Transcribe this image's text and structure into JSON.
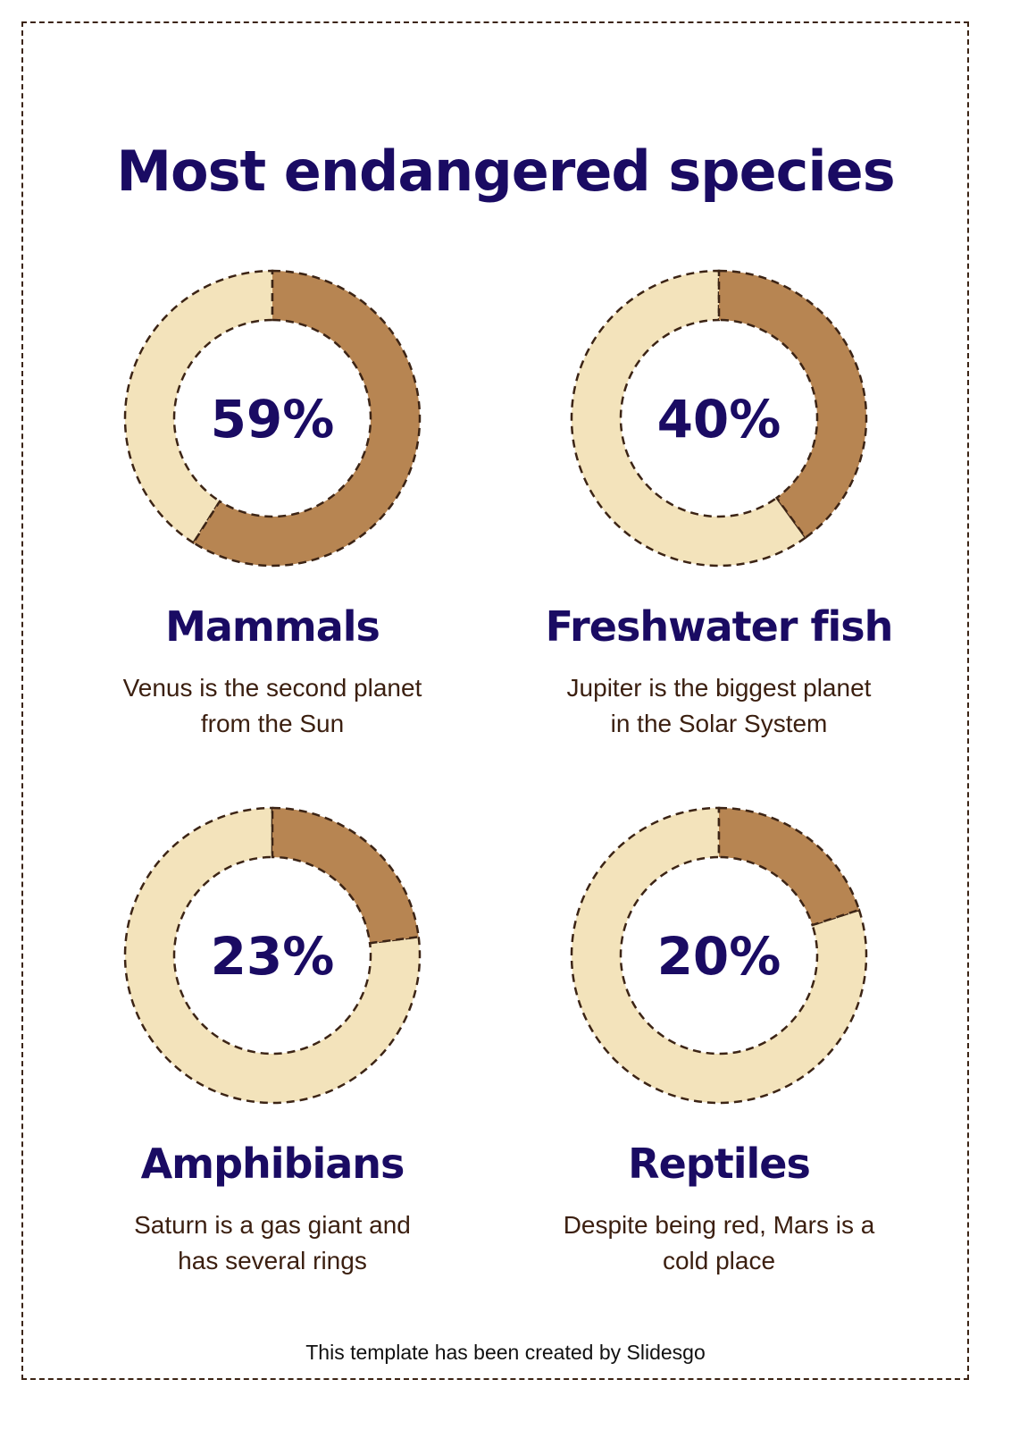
{
  "title": "Most endangered species",
  "colors": {
    "filled": "#b78552",
    "remaining": "#f3e3bb",
    "outline": "#3c2415",
    "heading": "#1a0b63",
    "text": "#3b1f10"
  },
  "chart_data": [
    {
      "type": "pie",
      "variant": "donut",
      "label": "59%",
      "value": 59,
      "name": "Mammals",
      "description_line1": "Venus is the second planet",
      "description_line2": "from the Sun"
    },
    {
      "type": "pie",
      "variant": "donut",
      "label": "40%",
      "value": 40,
      "name": "Freshwater fish",
      "description_line1": "Jupiter is the biggest planet",
      "description_line2": "in the Solar System"
    },
    {
      "type": "pie",
      "variant": "donut",
      "label": "23%",
      "value": 23,
      "name": "Amphibians",
      "description_line1": "Saturn is a gas giant and",
      "description_line2": "has several rings"
    },
    {
      "type": "pie",
      "variant": "donut",
      "label": "20%",
      "value": 20,
      "name": "Reptiles",
      "description_line1": "Despite being red, Mars is a",
      "description_line2": "cold place"
    }
  ],
  "footer": "This template has been created by Slidesgo"
}
